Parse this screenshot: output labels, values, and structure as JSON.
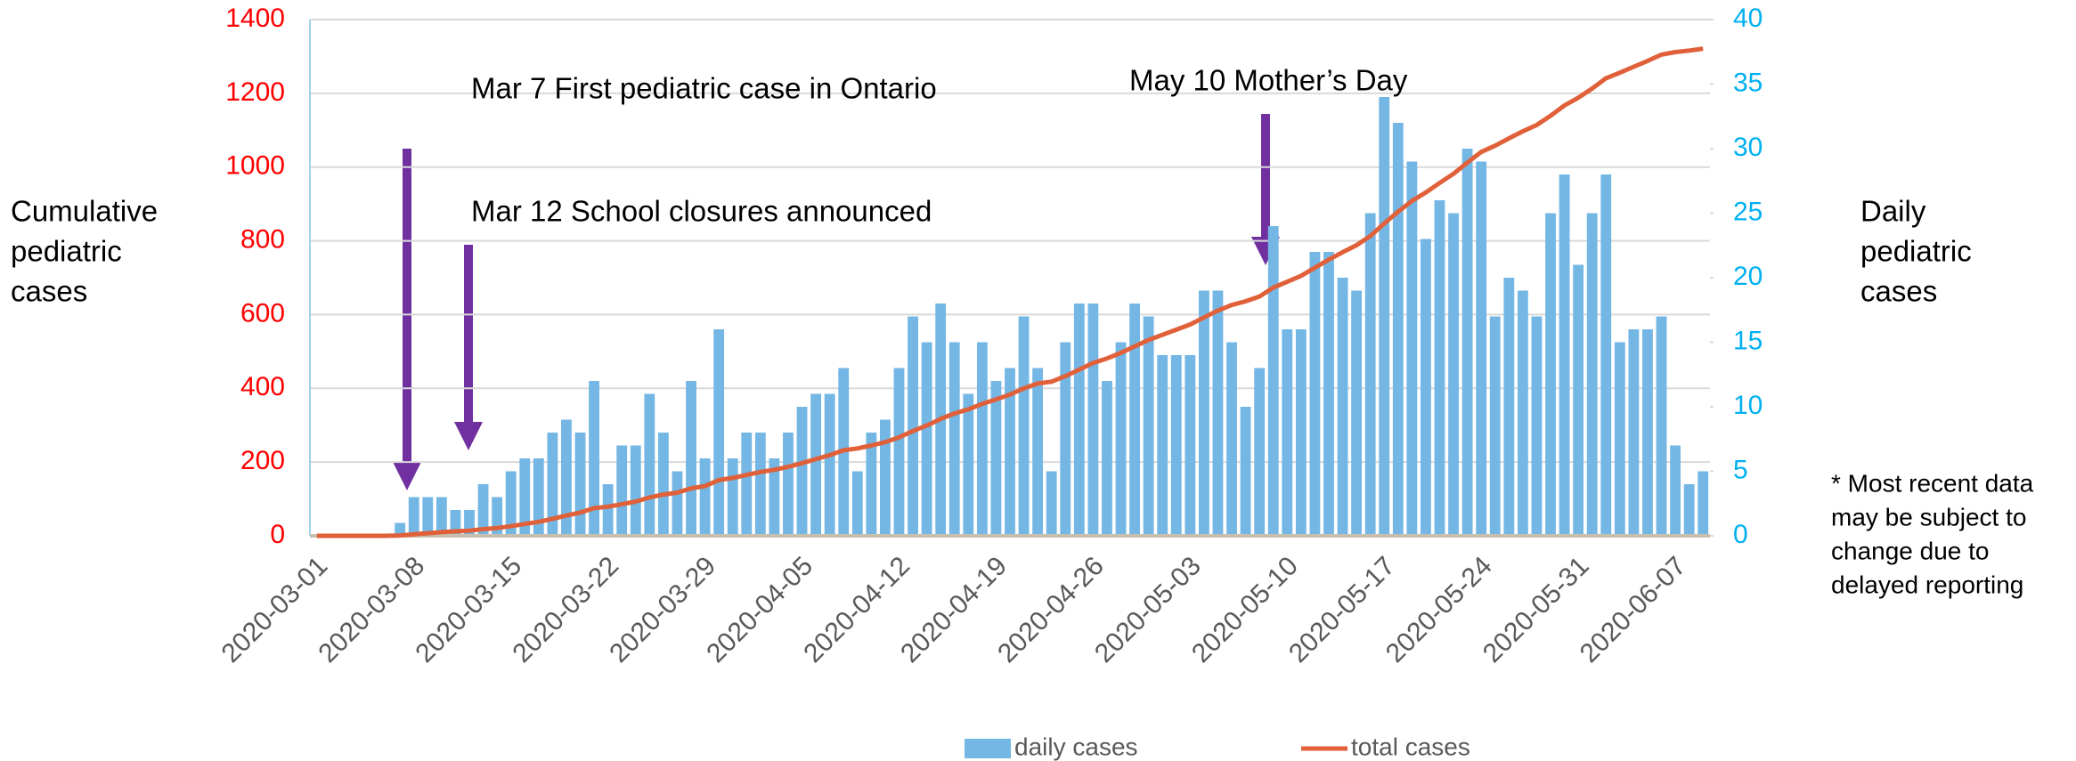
{
  "chart_data": {
    "type": "bar_line",
    "x": [
      "2020-03-01",
      "2020-03-02",
      "2020-03-03",
      "2020-03-04",
      "2020-03-05",
      "2020-03-06",
      "2020-03-07",
      "2020-03-08",
      "2020-03-09",
      "2020-03-10",
      "2020-03-11",
      "2020-03-12",
      "2020-03-13",
      "2020-03-14",
      "2020-03-15",
      "2020-03-16",
      "2020-03-17",
      "2020-03-18",
      "2020-03-19",
      "2020-03-20",
      "2020-03-21",
      "2020-03-22",
      "2020-03-23",
      "2020-03-24",
      "2020-03-25",
      "2020-03-26",
      "2020-03-27",
      "2020-03-28",
      "2020-03-29",
      "2020-03-30",
      "2020-03-31",
      "2020-04-01",
      "2020-04-02",
      "2020-04-03",
      "2020-04-04",
      "2020-04-05",
      "2020-04-06",
      "2020-04-07",
      "2020-04-08",
      "2020-04-09",
      "2020-04-10",
      "2020-04-11",
      "2020-04-12",
      "2020-04-13",
      "2020-04-14",
      "2020-04-15",
      "2020-04-16",
      "2020-04-17",
      "2020-04-18",
      "2020-04-19",
      "2020-04-20",
      "2020-04-21",
      "2020-04-22",
      "2020-04-23",
      "2020-04-24",
      "2020-04-25",
      "2020-04-26",
      "2020-04-27",
      "2020-04-28",
      "2020-04-29",
      "2020-04-30",
      "2020-05-01",
      "2020-05-02",
      "2020-05-03",
      "2020-05-04",
      "2020-05-05",
      "2020-05-06",
      "2020-05-07",
      "2020-05-08",
      "2020-05-09",
      "2020-05-10",
      "2020-05-11",
      "2020-05-12",
      "2020-05-13",
      "2020-05-14",
      "2020-05-15",
      "2020-05-16",
      "2020-05-17",
      "2020-05-18",
      "2020-05-19",
      "2020-05-20",
      "2020-05-21",
      "2020-05-22",
      "2020-05-23",
      "2020-05-24",
      "2020-05-25",
      "2020-05-26",
      "2020-05-27",
      "2020-05-28",
      "2020-05-29",
      "2020-05-30",
      "2020-05-31",
      "2020-06-01",
      "2020-06-02",
      "2020-06-03",
      "2020-06-04",
      "2020-06-05",
      "2020-06-06",
      "2020-06-07",
      "2020-06-08",
      "2020-06-09"
    ],
    "xticks": [
      "2020-03-01",
      "2020-03-08",
      "2020-03-15",
      "2020-03-22",
      "2020-03-29",
      "2020-04-05",
      "2020-04-12",
      "2020-04-19",
      "2020-04-26",
      "2020-05-03",
      "2020-05-10",
      "2020-05-17",
      "2020-05-24",
      "2020-05-31",
      "2020-06-07"
    ],
    "series": [
      {
        "name": "daily cases",
        "color": "#74b7e4",
        "axis": "y2",
        "type": "bar",
        "values": [
          0,
          0,
          0,
          0,
          0,
          0,
          1,
          3,
          3,
          3,
          2,
          2,
          4,
          3,
          5,
          6,
          6,
          8,
          9,
          8,
          12,
          4,
          7,
          7,
          11,
          8,
          5,
          12,
          6,
          16,
          6,
          8,
          8,
          6,
          8,
          10,
          11,
          11,
          13,
          5,
          8,
          9,
          13,
          17,
          15,
          18,
          15,
          11,
          15,
          12,
          13,
          17,
          13,
          5,
          15,
          18,
          18,
          12,
          15,
          18,
          17,
          14,
          14,
          14,
          19,
          19,
          15,
          10,
          13,
          24,
          16,
          16,
          22,
          22,
          20,
          19,
          25,
          34,
          32,
          29,
          23,
          26,
          25,
          30,
          29,
          17,
          20,
          19,
          17,
          25,
          28,
          21,
          25,
          28,
          15,
          16,
          16,
          17,
          7,
          4,
          5
        ]
      },
      {
        "name": "total cases",
        "color": "#e0603a",
        "type": "line",
        "values": [
          0,
          0,
          0,
          0,
          0,
          0,
          1,
          4,
          7,
          10,
          12,
          14,
          18,
          21,
          26,
          32,
          38,
          46,
          55,
          63,
          75,
          79,
          86,
          93,
          104,
          112,
          117,
          129,
          135,
          151,
          157,
          165,
          173,
          179,
          187,
          197,
          208,
          219,
          232,
          237,
          245,
          254,
          267,
          284,
          299,
          317,
          332,
          343,
          358,
          370,
          383,
          400,
          413,
          418,
          433,
          451,
          469,
          481,
          496,
          514,
          531,
          545,
          559,
          573,
          592,
          611,
          626,
          636,
          649,
          673,
          689,
          705,
          727,
          749,
          769,
          788,
          813,
          847,
          879,
          908,
          931,
          957,
          982,
          1012,
          1041,
          1058,
          1078,
          1097,
          1114,
          1139,
          1167,
          1188,
          1213,
          1241,
          1256,
          1272,
          1288,
          1305,
          1312,
          1316,
          1321
        ]
      }
    ],
    "ylim": [
      0,
      1400
    ],
    "yticks": [
      0,
      200,
      400,
      600,
      800,
      1000,
      1200,
      1400
    ],
    "y2lim": [
      0,
      40
    ],
    "y2ticks": [
      0,
      5,
      10,
      15,
      20,
      25,
      30,
      35,
      40
    ],
    "ylabel": [
      "Cumulative",
      "pediatric",
      "cases"
    ],
    "y2label": [
      "Daily",
      "pediatric",
      "cases"
    ],
    "annotations": [
      "Mar 7 First pediatric case in Ontario",
      "Mar 12 School closures announced",
      "May 10 Mother’s Day"
    ],
    "footnote": [
      "* Most recent data",
      "may be subject to",
      "change due to",
      "delayed reporting"
    ],
    "grid": true,
    "legend": "bottom"
  }
}
